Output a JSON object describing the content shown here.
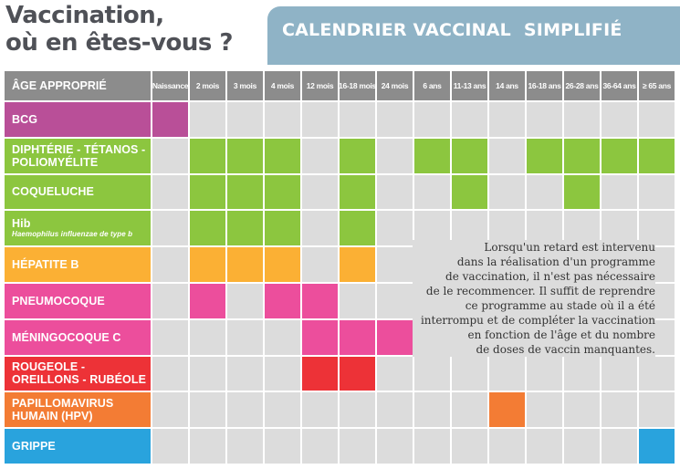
{
  "title": {
    "line1": "Vaccination,",
    "line2": "où en êtes-vous ?"
  },
  "banner": {
    "part1": "CALENDRIER VACCINAL",
    "part2": "SIMPLIFIÉ"
  },
  "table": {
    "header_label": "ÂGE APPROPRIÉ",
    "columns": [
      "Naissance",
      "2 mois",
      "3 mois",
      "4 mois",
      "12 mois",
      "16-18 mois",
      "24 mois",
      "6 ans",
      "11-13 ans",
      "14 ans",
      "16-18 ans",
      "26-28 ans",
      "36-64 ans",
      "≥ 65 ans"
    ],
    "rows": [
      {
        "label": "BCG",
        "sub": "",
        "color": "#b94f98",
        "cells": [
          0
        ]
      },
      {
        "label": "DIPHTÉRIE - TÉTANOS - POLIOMYÉLITE",
        "sub": "",
        "color": "#8cc63f",
        "cells": [
          1,
          2,
          3,
          5,
          7,
          8,
          10,
          11,
          12,
          13
        ]
      },
      {
        "label": "COQUELUCHE",
        "sub": "",
        "color": "#8cc63f",
        "cells": [
          1,
          2,
          3,
          5,
          8,
          11
        ]
      },
      {
        "label": "Hib",
        "sub": "Haemophilus influenzae de type b",
        "color": "#8cc63f",
        "cells": [
          1,
          2,
          3,
          5
        ]
      },
      {
        "label": "HÉPATITE B",
        "sub": "",
        "color": "#fbb034",
        "cells": [
          1,
          2,
          3,
          5
        ]
      },
      {
        "label": "PNEUMOCOQUE",
        "sub": "",
        "color": "#ec4e9c",
        "cells": [
          1,
          3,
          4
        ]
      },
      {
        "label": "MÉNINGOCOQUE C",
        "sub": "",
        "color": "#ec4e9c",
        "cells": [
          4,
          5,
          6
        ]
      },
      {
        "label": "ROUGEOLE - OREILLONS - RUBÉOLE",
        "sub": "",
        "color": "#ed3237",
        "cells": [
          4,
          5
        ]
      },
      {
        "label": "PAPILLOMAVIRUS HUMAIN (HPV)",
        "sub": "",
        "color": "#f37c34",
        "cells": [
          9
        ]
      },
      {
        "label": "GRIPPE",
        "sub": "",
        "color": "#29a3dd",
        "cells": [
          13
        ]
      }
    ]
  },
  "note": [
    "Lorsqu'un retard est intervenu",
    "dans la réalisation d'un programme",
    "de vaccination, il n'est pas nécessaire",
    "de le recommencer.  Il suffit de reprendre",
    "ce programme au stade où il a été",
    "interrompu et de compléter la vaccination",
    "en fonction de l'âge et du nombre",
    "de doses de vaccin manquantes."
  ]
}
